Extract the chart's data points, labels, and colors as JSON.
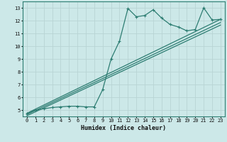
{
  "line1_x": [
    0,
    1,
    2,
    3,
    4,
    5,
    6,
    7,
    8,
    9,
    10,
    11,
    12,
    13,
    14,
    15,
    16,
    17,
    18,
    19,
    20,
    21,
    22,
    23
  ],
  "line1_y": [
    4.7,
    5.0,
    5.1,
    5.2,
    5.25,
    5.3,
    5.3,
    5.25,
    5.25,
    6.6,
    9.0,
    10.4,
    12.95,
    12.3,
    12.4,
    12.85,
    12.2,
    11.7,
    11.5,
    11.2,
    11.3,
    13.0,
    12.05,
    12.1
  ],
  "line2_x": [
    0,
    23
  ],
  "line2_y": [
    4.75,
    12.1
  ],
  "line3_x": [
    0,
    23
  ],
  "line3_y": [
    4.65,
    11.85
  ],
  "line4_x": [
    0,
    23
  ],
  "line4_y": [
    4.55,
    11.65
  ],
  "color": "#2d7d72",
  "bg_color": "#cce8e8",
  "grid_color": "#b8d4d4",
  "xlabel": "Humidex (Indice chaleur)",
  "xlim": [
    -0.5,
    23.5
  ],
  "ylim": [
    4.5,
    13.5
  ],
  "yticks": [
    5,
    6,
    7,
    8,
    9,
    10,
    11,
    12,
    13
  ],
  "xticks": [
    0,
    1,
    2,
    3,
    4,
    5,
    6,
    7,
    8,
    9,
    10,
    11,
    12,
    13,
    14,
    15,
    16,
    17,
    18,
    19,
    20,
    21,
    22,
    23
  ]
}
